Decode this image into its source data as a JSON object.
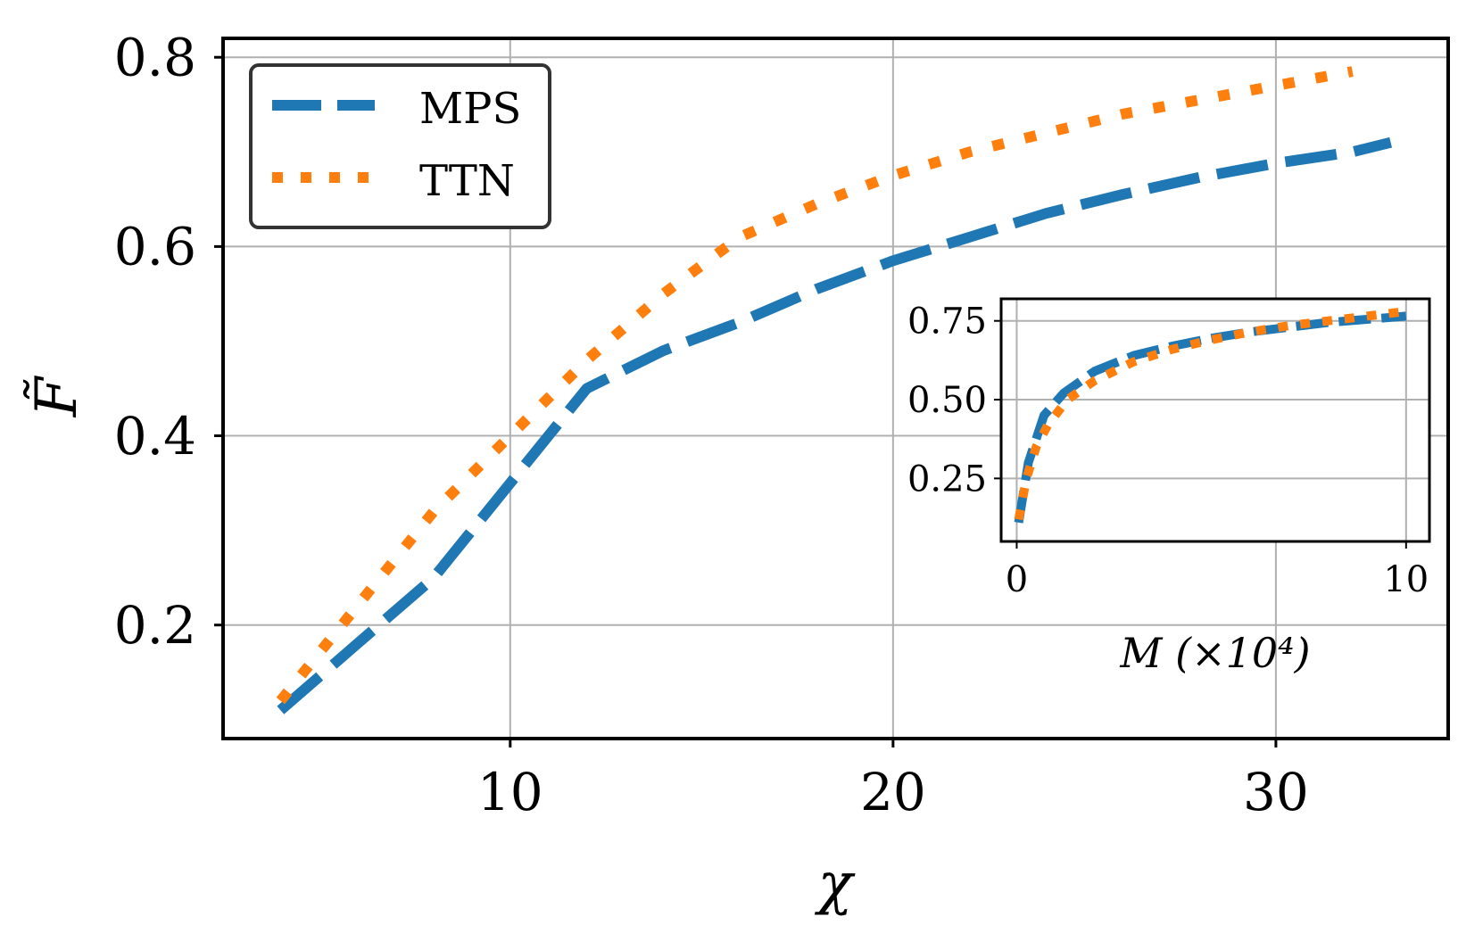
{
  "chart_data": [
    {
      "type": "line",
      "title": "",
      "xlabel": "χ",
      "ylabel": "F̃",
      "xlim": [
        2.5,
        34.5
      ],
      "ylim": [
        0.08,
        0.82
      ],
      "xticks": [
        10,
        20,
        30
      ],
      "yticks": [
        0.2,
        0.4,
        0.6,
        0.8
      ],
      "xtick_labels": [
        "10",
        "20",
        "30"
      ],
      "ytick_labels": [
        "0.2",
        "0.4",
        "0.6",
        "0.8"
      ],
      "grid": true,
      "legend": "top-left",
      "series": [
        {
          "name": "MPS",
          "color": "#1f77b4",
          "style": "dashed",
          "x": [
            4,
            6,
            8,
            9,
            10,
            11,
            12,
            14,
            16,
            18,
            20,
            22,
            24,
            26,
            28,
            30,
            32,
            33
          ],
          "y": [
            0.11,
            0.18,
            0.25,
            0.3,
            0.35,
            0.4,
            0.45,
            0.49,
            0.52,
            0.555,
            0.585,
            0.61,
            0.635,
            0.655,
            0.673,
            0.688,
            0.7,
            0.71
          ]
        },
        {
          "name": "TTN",
          "color": "#ff7f0e",
          "style": "dotted",
          "x": [
            4,
            6,
            8,
            10,
            12,
            14,
            16,
            18,
            20,
            22,
            24,
            26,
            28,
            30,
            32
          ],
          "y": [
            0.12,
            0.22,
            0.32,
            0.4,
            0.48,
            0.55,
            0.61,
            0.645,
            0.675,
            0.7,
            0.72,
            0.74,
            0.755,
            0.77,
            0.785
          ]
        }
      ]
    },
    {
      "type": "line",
      "title": "",
      "xlabel": "M (×10⁴)",
      "ylabel": "",
      "xlim": [
        -0.4,
        10.6
      ],
      "ylim": [
        0.05,
        0.82
      ],
      "xticks": [
        0,
        10
      ],
      "yticks": [
        0.25,
        0.5,
        0.75
      ],
      "xtick_labels": [
        "0",
        "10"
      ],
      "ytick_labels": [
        "0.25",
        "0.50",
        "0.75"
      ],
      "grid": true,
      "series": [
        {
          "name": "MPS",
          "color": "#1f77b4",
          "style": "dashed",
          "x": [
            0.05,
            0.3,
            0.7,
            1.2,
            2.0,
            3.0,
            4.0,
            5.0,
            6.0,
            7.0,
            8.0,
            9.0,
            10.0
          ],
          "y": [
            0.11,
            0.3,
            0.45,
            0.52,
            0.59,
            0.64,
            0.67,
            0.695,
            0.715,
            0.73,
            0.745,
            0.755,
            0.765
          ]
        },
        {
          "name": "TTN",
          "color": "#ff7f0e",
          "style": "dotted",
          "x": [
            0.05,
            0.25,
            0.5,
            0.8,
            1.3,
            2.0,
            3.0,
            4.0,
            5.0,
            6.0,
            7.0,
            8.0,
            9.0,
            10.0
          ],
          "y": [
            0.12,
            0.25,
            0.35,
            0.42,
            0.5,
            0.56,
            0.62,
            0.66,
            0.69,
            0.715,
            0.735,
            0.75,
            0.765,
            0.78
          ]
        }
      ]
    }
  ]
}
